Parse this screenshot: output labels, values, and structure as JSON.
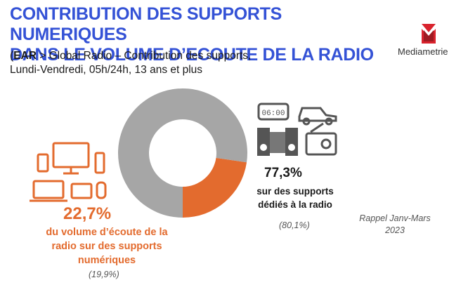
{
  "header": {
    "title_line1": "CONTRIBUTION DES SUPPORTS NUMERIQUES",
    "title_line2": "DANS LE VOLUME D’ECOUTE DE LA RADIO",
    "subtitle_paren": "(",
    "subtitle_ear": "EAR",
    "subtitle_line1_rest": " > Global Radio – Contribution des supports,",
    "subtitle_line2": "Lundi-Vendredi, 05h/24h, 13 ans et plus"
  },
  "logo": {
    "name": "Mediametrie",
    "colors": {
      "red": "#d9232d",
      "darkred": "#9e1b22"
    }
  },
  "chart_data": {
    "type": "pie",
    "variant": "donut",
    "categories": [
      "du volume d’écoute de la radio sur des supports numériques",
      "sur des supports dédiés à la radio"
    ],
    "values": [
      22.7,
      77.3
    ],
    "previous_values": [
      19.9,
      80.1
    ],
    "colors": [
      "#e36b2e",
      "#a6a6a6"
    ],
    "labels": {
      "digital_pct": "22,7%",
      "digital_desc_line1": "du volume d’écoute de la",
      "digital_desc_line2": "radio sur des supports",
      "digital_desc_line3": "numériques",
      "digital_prev": "(19,9%)",
      "dedicated_pct": "77,3%",
      "dedicated_desc_line1": "sur des supports",
      "dedicated_desc_line2": "dédiés à la radio",
      "dedicated_prev": "(80,1%)"
    }
  },
  "recall": {
    "line1": "Rappel Janv-Mars",
    "line2": "2023"
  },
  "clock_display": "06:00",
  "icons": {
    "left": [
      "monitor-icon",
      "laptop-icon",
      "smartphone-icon",
      "tablet-icon",
      "smart-speaker-icon",
      "tower-pc-icon"
    ],
    "right": [
      "clock-radio-icon",
      "car-icon",
      "hifi-speakers-icon",
      "transistor-radio-icon"
    ]
  },
  "colors": {
    "title": "#3452d6",
    "accent": "#e36b2e",
    "icon_grey": "#555555"
  }
}
